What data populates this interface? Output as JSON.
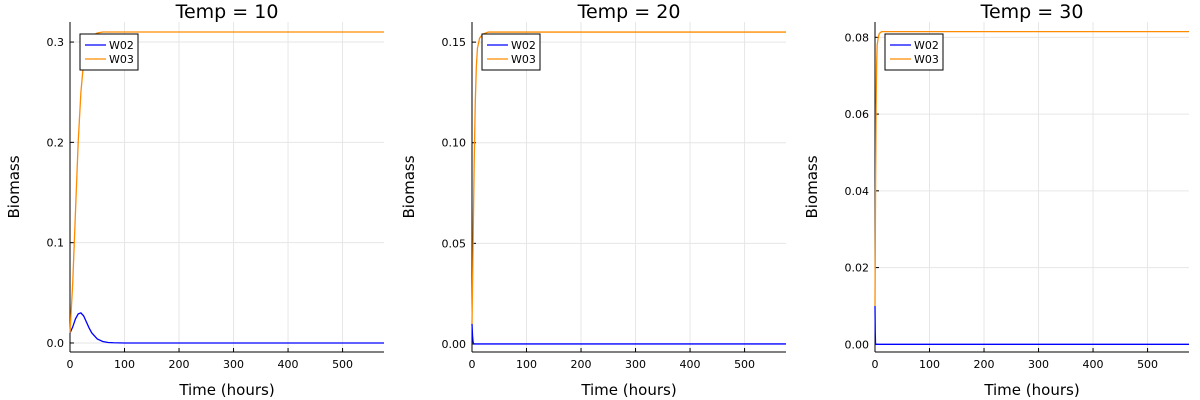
{
  "colors": {
    "W02": "#0000ff",
    "W03": "#ff8c00"
  },
  "chart_data": [
    {
      "type": "line",
      "title": "Temp = 10",
      "xlabel": "Time (hours)",
      "ylabel": "Biomass",
      "xlim": [
        0,
        576
      ],
      "ylim": [
        -0.009,
        0.32
      ],
      "xticks": [
        0,
        100,
        200,
        300,
        400,
        500
      ],
      "xtick_labels": [
        "0",
        "100",
        "200",
        "300",
        "400",
        "500"
      ],
      "yticks": [
        0,
        0.1,
        0.2,
        0.3
      ],
      "ytick_labels": [
        "0.0",
        "0.1",
        "0.2",
        "0.3"
      ],
      "grid": true,
      "legend": "top-left",
      "series": [
        {
          "name": "W02",
          "x": [
            0,
            5,
            10,
            15,
            20,
            25,
            30,
            35,
            40,
            50,
            60,
            70,
            80,
            100,
            150,
            576
          ],
          "y": [
            0.01,
            0.016,
            0.024,
            0.029,
            0.03,
            0.027,
            0.021,
            0.015,
            0.01,
            0.004,
            0.0015,
            0.0005,
            0.0002,
            0.0,
            0.0,
            0.0
          ]
        },
        {
          "name": "W03",
          "x": [
            0,
            5,
            10,
            15,
            20,
            25,
            30,
            35,
            40,
            50,
            60,
            70,
            80,
            100,
            576
          ],
          "y": [
            0.01,
            0.06,
            0.13,
            0.2,
            0.25,
            0.28,
            0.295,
            0.302,
            0.306,
            0.309,
            0.31,
            0.31,
            0.31,
            0.31,
            0.31
          ]
        }
      ]
    },
    {
      "type": "line",
      "title": "Temp = 20",
      "xlabel": "Time (hours)",
      "ylabel": "Biomass",
      "xlim": [
        0,
        576
      ],
      "ylim": [
        -0.004,
        0.16
      ],
      "xticks": [
        0,
        100,
        200,
        300,
        400,
        500
      ],
      "xtick_labels": [
        "0",
        "100",
        "200",
        "300",
        "400",
        "500"
      ],
      "yticks": [
        0,
        0.05,
        0.1,
        0.15
      ],
      "ytick_labels": [
        "0.00",
        "0.05",
        "0.10",
        "0.15"
      ],
      "grid": true,
      "legend": "top-left",
      "series": [
        {
          "name": "W02",
          "x": [
            0,
            1,
            2,
            3,
            5,
            576
          ],
          "y": [
            0.01,
            0.004,
            0.001,
            0.0,
            0.0,
            0.0
          ]
        },
        {
          "name": "W03",
          "x": [
            0,
            2,
            4,
            6,
            8,
            10,
            14,
            20,
            30,
            576
          ],
          "y": [
            0.01,
            0.05,
            0.09,
            0.12,
            0.138,
            0.147,
            0.152,
            0.154,
            0.155,
            0.155
          ]
        }
      ]
    },
    {
      "type": "line",
      "title": "Temp = 30",
      "xlabel": "Time (hours)",
      "ylabel": "Biomass",
      "xlim": [
        0,
        576
      ],
      "ylim": [
        -0.002,
        0.084
      ],
      "xticks": [
        0,
        100,
        200,
        300,
        400,
        500
      ],
      "xtick_labels": [
        "0",
        "100",
        "200",
        "300",
        "400",
        "500"
      ],
      "yticks": [
        0,
        0.02,
        0.04,
        0.06,
        0.08
      ],
      "ytick_labels": [
        "0.00",
        "0.02",
        "0.04",
        "0.06",
        "0.08"
      ],
      "grid": true,
      "legend": "top-left",
      "series": [
        {
          "name": "W02",
          "x": [
            0,
            0.5,
            1,
            2,
            576
          ],
          "y": [
            0.01,
            0.003,
            0.0,
            0.0,
            0.0
          ]
        },
        {
          "name": "W03",
          "x": [
            0,
            1,
            2,
            3,
            4,
            6,
            8,
            12,
            576
          ],
          "y": [
            0.01,
            0.04,
            0.062,
            0.073,
            0.078,
            0.08,
            0.081,
            0.0815,
            0.0815
          ]
        }
      ]
    }
  ]
}
